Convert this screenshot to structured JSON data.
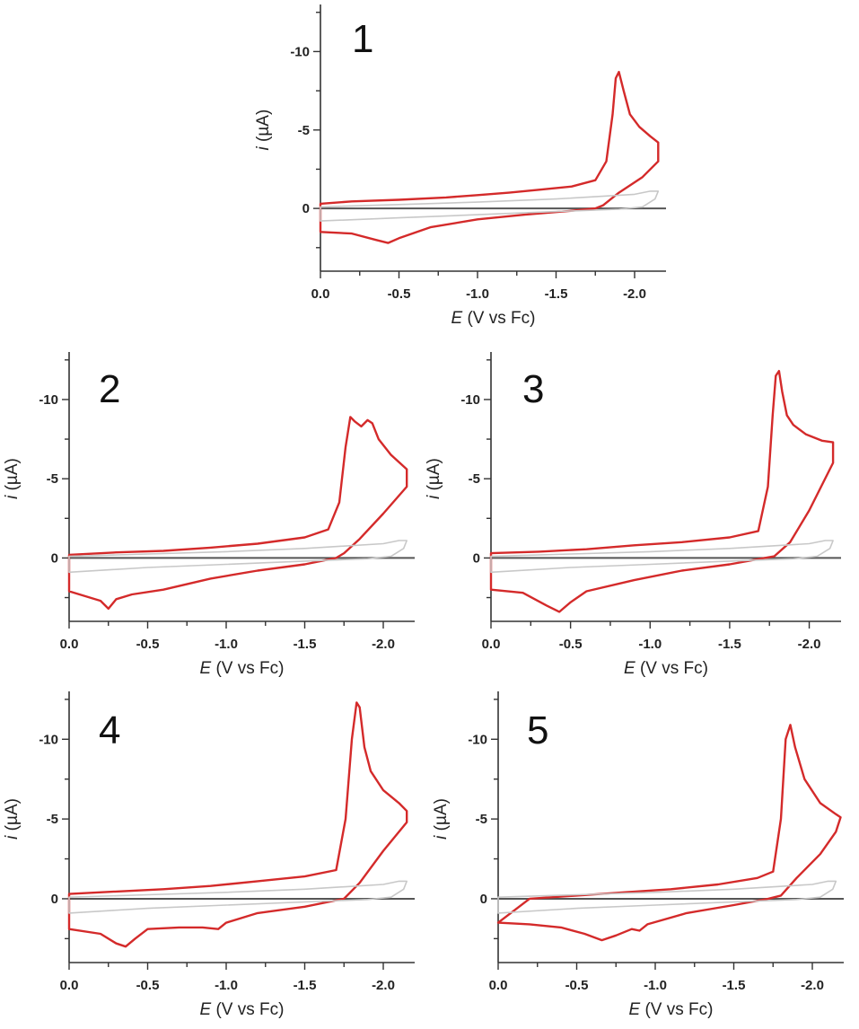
{
  "chart_data": [
    {
      "type": "line",
      "panel_label": "1",
      "xlabel_var": "E",
      "xlabel_unit": " (V vs Fc)",
      "ylabel_var": "i",
      "ylabel_unit": " (µA)",
      "xlim": [
        0.0,
        -2.2
      ],
      "ylim": [
        4,
        -13
      ],
      "x_ticks": [
        "0.0",
        "-0.5",
        "-1.0",
        "-1.5",
        "-2.0"
      ],
      "x_tick_values": [
        0.0,
        -0.5,
        -1.0,
        -1.5,
        -2.0
      ],
      "y_ticks": [
        "-10",
        "-5",
        "0"
      ],
      "y_tick_values": [
        -10,
        -5,
        0
      ],
      "grid": false,
      "series": [
        {
          "color": "#d42a2a",
          "x": [
            0.0,
            -0.2,
            -0.5,
            -0.8,
            -1.0,
            -1.2,
            -1.4,
            -1.6,
            -1.75,
            -1.82,
            -1.86,
            -1.88,
            -1.9,
            -1.93,
            -1.97,
            -2.03,
            -2.1,
            -2.15,
            -2.15,
            -2.05,
            -1.9,
            -1.8,
            -1.75,
            -1.6,
            -1.3,
            -1.0,
            -0.7,
            -0.5,
            -0.43,
            -0.35,
            -0.2,
            0.0
          ],
          "y": [
            -0.3,
            -0.45,
            -0.55,
            -0.7,
            -0.85,
            -1.0,
            -1.2,
            -1.4,
            -1.8,
            -3.0,
            -6.0,
            -8.3,
            -8.7,
            -7.5,
            -6.0,
            -5.2,
            -4.6,
            -4.2,
            -3.0,
            -2.0,
            -1.0,
            -0.2,
            0.0,
            0.15,
            0.4,
            0.7,
            1.2,
            1.9,
            2.2,
            2.0,
            1.6,
            1.5
          ]
        },
        {
          "color": "#c8c8c8",
          "x": [
            0.0,
            -0.5,
            -1.0,
            -1.5,
            -2.0,
            -2.1,
            -2.15,
            -2.13,
            -2.05,
            -1.9,
            -1.5,
            -1.0,
            -0.5,
            0.0
          ],
          "y": [
            -0.1,
            -0.25,
            -0.4,
            -0.6,
            -0.9,
            -1.1,
            -1.1,
            -0.6,
            -0.1,
            0.05,
            0.2,
            0.4,
            0.6,
            0.8
          ]
        }
      ]
    },
    {
      "type": "line",
      "panel_label": "2",
      "xlabel_var": "E",
      "xlabel_unit": " (V vs Fc)",
      "ylabel_var": "i",
      "ylabel_unit": " (µA)",
      "xlim": [
        0.0,
        -2.2
      ],
      "ylim": [
        4,
        -13
      ],
      "x_ticks": [
        "0.0",
        "-0.5",
        "-1.0",
        "-1.5",
        "-2.0"
      ],
      "x_tick_values": [
        0.0,
        -0.5,
        -1.0,
        -1.5,
        -2.0
      ],
      "y_ticks": [
        "-10",
        "-5",
        "0"
      ],
      "y_tick_values": [
        -10,
        -5,
        0
      ],
      "grid": false,
      "series": [
        {
          "color": "#d42a2a",
          "x": [
            0.0,
            -0.3,
            -0.6,
            -0.9,
            -1.2,
            -1.5,
            -1.65,
            -1.72,
            -1.76,
            -1.79,
            -1.82,
            -1.86,
            -1.9,
            -1.93,
            -1.97,
            -2.05,
            -2.15,
            -2.15,
            -2.0,
            -1.85,
            -1.75,
            -1.7,
            -1.5,
            -1.2,
            -0.9,
            -0.6,
            -0.4,
            -0.3,
            -0.25,
            -0.2,
            0.0
          ],
          "y": [
            -0.2,
            -0.35,
            -0.45,
            -0.65,
            -0.9,
            -1.3,
            -1.8,
            -3.5,
            -7.0,
            -8.9,
            -8.6,
            -8.3,
            -8.7,
            -8.5,
            -7.5,
            -6.5,
            -5.6,
            -4.5,
            -2.8,
            -1.2,
            -0.3,
            0.0,
            0.4,
            0.8,
            1.3,
            2.0,
            2.3,
            2.6,
            3.2,
            2.7,
            2.1
          ]
        },
        {
          "color": "#c8c8c8",
          "x": [
            0.0,
            -0.5,
            -1.0,
            -1.5,
            -2.0,
            -2.1,
            -2.15,
            -2.13,
            -2.05,
            -1.9,
            -1.5,
            -1.0,
            -0.5,
            0.0
          ],
          "y": [
            -0.1,
            -0.25,
            -0.4,
            -0.6,
            -0.9,
            -1.1,
            -1.1,
            -0.6,
            -0.1,
            0.05,
            0.2,
            0.4,
            0.6,
            0.9
          ]
        }
      ]
    },
    {
      "type": "line",
      "panel_label": "3",
      "xlabel_var": "E",
      "xlabel_unit": " (V vs Fc)",
      "ylabel_var": "i",
      "ylabel_unit": " (µA)",
      "xlim": [
        0.0,
        -2.2
      ],
      "ylim": [
        4,
        -13
      ],
      "x_ticks": [
        "0.0",
        "-0.5",
        "-1.0",
        "-1.5",
        "-2.0"
      ],
      "x_tick_values": [
        0.0,
        -0.5,
        -1.0,
        -1.5,
        -2.0
      ],
      "y_ticks": [
        "-10",
        "-5",
        "0"
      ],
      "y_tick_values": [
        -10,
        -5,
        0
      ],
      "grid": false,
      "series": [
        {
          "color": "#d42a2a",
          "x": [
            0.0,
            -0.3,
            -0.6,
            -0.9,
            -1.2,
            -1.5,
            -1.68,
            -1.74,
            -1.77,
            -1.79,
            -1.81,
            -1.83,
            -1.86,
            -1.9,
            -1.98,
            -2.08,
            -2.15,
            -2.15,
            -2.0,
            -1.88,
            -1.78,
            -1.72,
            -1.5,
            -1.2,
            -0.9,
            -0.6,
            -0.5,
            -0.43,
            -0.35,
            -0.2,
            0.0
          ],
          "y": [
            -0.3,
            -0.4,
            -0.55,
            -0.8,
            -1.0,
            -1.3,
            -1.7,
            -4.5,
            -9.0,
            -11.5,
            -11.8,
            -10.5,
            -9.0,
            -8.4,
            -7.8,
            -7.4,
            -7.3,
            -6.0,
            -3.0,
            -1.0,
            -0.1,
            0.0,
            0.4,
            0.8,
            1.4,
            2.1,
            2.8,
            3.4,
            3.0,
            2.2,
            2.0
          ]
        },
        {
          "color": "#c8c8c8",
          "x": [
            0.0,
            -0.5,
            -1.0,
            -1.5,
            -2.0,
            -2.1,
            -2.15,
            -2.13,
            -2.05,
            -1.9,
            -1.5,
            -1.0,
            -0.5,
            0.0
          ],
          "y": [
            -0.1,
            -0.25,
            -0.4,
            -0.6,
            -0.9,
            -1.1,
            -1.1,
            -0.6,
            -0.1,
            0.05,
            0.2,
            0.4,
            0.6,
            0.9
          ]
        }
      ]
    },
    {
      "type": "line",
      "panel_label": "4",
      "xlabel_var": "E",
      "xlabel_unit": " (V vs Fc)",
      "ylabel_var": "i",
      "ylabel_unit": " (µA)",
      "xlim": [
        0.0,
        -2.2
      ],
      "ylim": [
        4,
        -13
      ],
      "x_ticks": [
        "0.0",
        "-0.5",
        "-1.0",
        "-1.5",
        "-2.0"
      ],
      "x_tick_values": [
        0.0,
        -0.5,
        -1.0,
        -1.5,
        -2.0
      ],
      "y_ticks": [
        "-10",
        "-5",
        "0"
      ],
      "y_tick_values": [
        -10,
        -5,
        0
      ],
      "grid": false,
      "series": [
        {
          "color": "#d42a2a",
          "x": [
            0.0,
            -0.3,
            -0.6,
            -0.9,
            -1.2,
            -1.5,
            -1.7,
            -1.76,
            -1.8,
            -1.83,
            -1.85,
            -1.88,
            -1.92,
            -2.0,
            -2.1,
            -2.15,
            -2.15,
            -2.0,
            -1.85,
            -1.75,
            -1.5,
            -1.2,
            -1.0,
            -0.95,
            -0.85,
            -0.7,
            -0.5,
            -0.42,
            -0.36,
            -0.3,
            -0.2,
            0.0
          ],
          "y": [
            -0.3,
            -0.45,
            -0.6,
            -0.8,
            -1.1,
            -1.4,
            -1.8,
            -5.0,
            -10.0,
            -12.3,
            -12.0,
            -9.5,
            -8.0,
            -6.8,
            -6.0,
            -5.5,
            -4.8,
            -3.0,
            -1.0,
            0.0,
            0.5,
            0.9,
            1.5,
            1.9,
            1.8,
            1.8,
            1.9,
            2.5,
            3.0,
            2.8,
            2.2,
            1.9
          ]
        },
        {
          "color": "#c8c8c8",
          "x": [
            0.0,
            -0.5,
            -1.0,
            -1.5,
            -2.0,
            -2.1,
            -2.15,
            -2.13,
            -2.05,
            -1.9,
            -1.5,
            -1.0,
            -0.5,
            0.0
          ],
          "y": [
            -0.1,
            -0.25,
            -0.4,
            -0.6,
            -0.9,
            -1.1,
            -1.1,
            -0.6,
            -0.1,
            0.05,
            0.2,
            0.4,
            0.6,
            0.9
          ]
        }
      ]
    },
    {
      "type": "line",
      "panel_label": "5",
      "xlabel_var": "E",
      "xlabel_unit": " (V vs Fc)",
      "ylabel_var": "i",
      "ylabel_unit": " (µA)",
      "xlim": [
        0.0,
        -2.2
      ],
      "ylim": [
        4,
        -13
      ],
      "x_ticks": [
        "0.0",
        "-0.5",
        "-1.0",
        "-1.5",
        "-2.0"
      ],
      "x_tick_values": [
        0.0,
        -0.5,
        -1.0,
        -1.5,
        -2.0
      ],
      "y_ticks": [
        "-10",
        "-5",
        "0"
      ],
      "y_tick_values": [
        -10,
        -5,
        0
      ],
      "grid": false,
      "series": [
        {
          "color": "#d42a2a",
          "x": [
            -0.2,
            -0.5,
            -0.8,
            -1.1,
            -1.4,
            -1.65,
            -1.75,
            -1.8,
            -1.83,
            -1.86,
            -1.89,
            -1.95,
            -2.05,
            -2.15,
            -2.18,
            -2.15,
            -2.05,
            -1.9,
            -1.8,
            -1.72,
            -1.5,
            -1.2,
            -0.95,
            -0.9,
            -0.85,
            -0.75,
            -0.66,
            -0.55,
            -0.4,
            -0.2,
            0.0
          ],
          "y": [
            0.0,
            -0.2,
            -0.4,
            -0.6,
            -0.9,
            -1.3,
            -1.7,
            -5.0,
            -10.0,
            -10.9,
            -9.5,
            -7.5,
            -6.0,
            -5.3,
            -5.1,
            -4.2,
            -2.8,
            -1.3,
            -0.2,
            0.0,
            0.4,
            0.9,
            1.6,
            2.0,
            1.9,
            2.3,
            2.6,
            2.2,
            1.8,
            1.6,
            1.5
          ]
        },
        {
          "color": "#c8c8c8",
          "x": [
            0.0,
            -0.5,
            -1.0,
            -1.5,
            -2.0,
            -2.1,
            -2.15,
            -2.13,
            -2.05,
            -1.9,
            -1.5,
            -1.0,
            -0.5,
            0.0
          ],
          "y": [
            -0.1,
            -0.25,
            -0.4,
            -0.6,
            -0.9,
            -1.1,
            -1.1,
            -0.6,
            -0.1,
            0.05,
            0.2,
            0.4,
            0.6,
            0.9
          ]
        }
      ]
    }
  ]
}
